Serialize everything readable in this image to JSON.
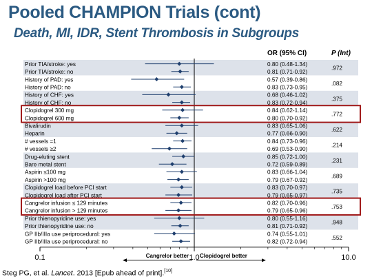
{
  "slide": {
    "title": "Pooled CHAMPION Trials (cont)",
    "subtitle": "Death, MI, IDR, Stent Thrombosis in Subgroups",
    "citation_pre": "Steg PG, et al. ",
    "citation_journal": "Lancet",
    "citation_post": ". 2013 [Epub ahead of print].",
    "citation_ref": "[10]"
  },
  "chart_data": {
    "type": "forest",
    "scale": "log",
    "xlim": [
      0.1,
      10
    ],
    "x_ticks": [
      {
        "value": 0.1,
        "label": "0.1"
      },
      {
        "value": 1,
        "label": "1.0"
      },
      {
        "value": 10,
        "label": "10.0"
      }
    ],
    "reference_line": 1,
    "left_label": "Cangrelor better",
    "right_label": "Clopidogrel better",
    "col_or_header": "OR (95% CI)",
    "col_p_header": "P (Int)",
    "colors": {
      "title": "#2b5a82",
      "band": "#dde2ea",
      "marker": "#1f3f6e",
      "highlight": "#a11b1b"
    },
    "highlighted_groups": [
      3,
      9
    ],
    "groups": [
      {
        "p": ".972",
        "rows": [
          {
            "label": "Prior TIA/stroke: yes",
            "or_text": "0.80 (0.48-1.34)",
            "or": 0.8,
            "lo": 0.48,
            "hi": 1.34
          },
          {
            "label": "Prior TIA/stroke: no",
            "or_text": "0.81 (0.71-0.92)",
            "or": 0.81,
            "lo": 0.71,
            "hi": 0.92
          }
        ]
      },
      {
        "p": ".082",
        "rows": [
          {
            "label": "History of PAD: yes",
            "or_text": "0.57 (0.39-0.86)",
            "or": 0.57,
            "lo": 0.39,
            "hi": 0.86
          },
          {
            "label": "History of PAD: no",
            "or_text": "0.83 (0.73-0.95)",
            "or": 0.83,
            "lo": 0.73,
            "hi": 0.95
          }
        ]
      },
      {
        "p": ".375",
        "rows": [
          {
            "label": "History of CHF: yes",
            "or_text": "0.68 (0.46-1.02)",
            "or": 0.68,
            "lo": 0.46,
            "hi": 1.02
          },
          {
            "label": "History of CHF: no",
            "or_text": "0.83 (0.72-0.94)",
            "or": 0.83,
            "lo": 0.72,
            "hi": 0.94
          }
        ]
      },
      {
        "p": ".772",
        "rows": [
          {
            "label": "Clopidogrel 300 mg",
            "or_text": "0.84 (0.62-1.14)",
            "or": 0.84,
            "lo": 0.62,
            "hi": 1.14
          },
          {
            "label": "Clopidogrel 600 mg",
            "or_text": "0.80 (0.70-0.92)",
            "or": 0.8,
            "lo": 0.7,
            "hi": 0.92
          }
        ]
      },
      {
        "p": ".622",
        "rows": [
          {
            "label": "Bivalirudin",
            "or_text": "0.83 (0.65-1.06)",
            "or": 0.83,
            "lo": 0.65,
            "hi": 1.06
          },
          {
            "label": "Heparin",
            "or_text": "0.77 (0.66-0.90)",
            "or": 0.77,
            "lo": 0.66,
            "hi": 0.9
          }
        ]
      },
      {
        "p": ".214",
        "rows": [
          {
            "label": "# vessels =1",
            "or_text": "0.84 (0.73-0.96)",
            "or": 0.84,
            "lo": 0.73,
            "hi": 0.96
          },
          {
            "label": "# vessels ≥2",
            "or_text": "0.69 (0.53-0.90)",
            "or": 0.69,
            "lo": 0.53,
            "hi": 0.9
          }
        ]
      },
      {
        "p": ".231",
        "rows": [
          {
            "label": "Drug-eluting stent",
            "or_text": "0.85 (0.72-1.00)",
            "or": 0.85,
            "lo": 0.72,
            "hi": 1.0
          },
          {
            "label": "Bare metal stent",
            "or_text": "0.72 (0.59-0.89)",
            "or": 0.72,
            "lo": 0.59,
            "hi": 0.89
          }
        ]
      },
      {
        "p": ".689",
        "rows": [
          {
            "label": "Aspirin ≤100 mg",
            "or_text": "0.83 (0.66-1.04)",
            "or": 0.83,
            "lo": 0.66,
            "hi": 1.04
          },
          {
            "label": "Aspirin >100 mg",
            "or_text": "0.79 (0.67-0.92)",
            "or": 0.79,
            "lo": 0.67,
            "hi": 0.92
          }
        ]
      },
      {
        "p": ".735",
        "rows": [
          {
            "label": "Clopidogrel load before PCI start",
            "or_text": "0.83 (0.70-0.97)",
            "or": 0.83,
            "lo": 0.7,
            "hi": 0.97
          },
          {
            "label": "Clopidogrel load after PCI start",
            "or_text": "0.79 (0.65-0.97)",
            "or": 0.79,
            "lo": 0.65,
            "hi": 0.97
          }
        ]
      },
      {
        "p": ".753",
        "rows": [
          {
            "label": "Cangrelor infusion ≤ 129 minutes",
            "or_text": "0.82 (0.70-0.96)",
            "or": 0.82,
            "lo": 0.7,
            "hi": 0.96
          },
          {
            "label": "Cangrelor infusion > 129 minutes",
            "or_text": "0.79 (0.65-0.96)",
            "or": 0.79,
            "lo": 0.65,
            "hi": 0.96
          }
        ]
      },
      {
        "p": ".948",
        "rows": [
          {
            "label": "Prior thienopyridine use: yes",
            "or_text": "0.80 (0.55-1.16)",
            "or": 0.8,
            "lo": 0.55,
            "hi": 1.16
          },
          {
            "label": "Prior thienopyridine use: no",
            "or_text": "0.81 (0.71-0.92)",
            "or": 0.81,
            "lo": 0.71,
            "hi": 0.92
          }
        ]
      },
      {
        "p": ".552",
        "rows": [
          {
            "label": "GP IIb/IIIa use periprocedural: yes",
            "or_text": "0.74 (0.55-1.01)",
            "or": 0.74,
            "lo": 0.55,
            "hi": 1.01
          },
          {
            "label": "GP IIb/IIIa use periprocedural: no",
            "or_text": "0.82 (0.72-0.94)",
            "or": 0.82,
            "lo": 0.72,
            "hi": 0.94
          }
        ]
      }
    ]
  }
}
